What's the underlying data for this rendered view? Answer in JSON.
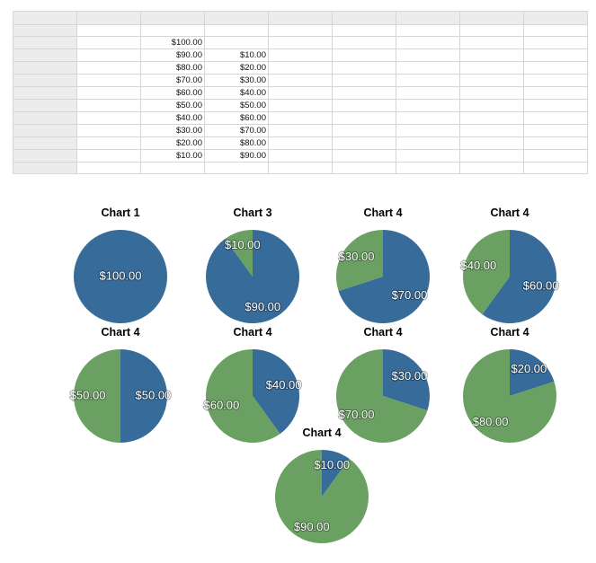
{
  "sheet": {
    "column_count": 9,
    "rows": [
      [
        "",
        "",
        "",
        ""
      ],
      [
        "",
        "",
        "$100.00",
        ""
      ],
      [
        "",
        "",
        "$90.00",
        "$10.00"
      ],
      [
        "",
        "",
        "$80.00",
        "$20.00"
      ],
      [
        "",
        "",
        "$70.00",
        "$30.00"
      ],
      [
        "",
        "",
        "$60.00",
        "$40.00"
      ],
      [
        "",
        "",
        "$50.00",
        "$50.00"
      ],
      [
        "",
        "",
        "$40.00",
        "$60.00"
      ],
      [
        "",
        "",
        "$30.00",
        "$70.00"
      ],
      [
        "",
        "",
        "$20.00",
        "$80.00"
      ],
      [
        "",
        "",
        "$10.00",
        "$90.00"
      ],
      [
        "",
        "",
        "",
        ""
      ]
    ]
  },
  "colors": {
    "series1": "#366b9a",
    "series2": "#6aa062"
  },
  "chart_data": [
    {
      "type": "pie",
      "title": "Chart 1",
      "values": [
        100
      ],
      "labels": [
        "$100.00"
      ]
    },
    {
      "type": "pie",
      "title": "Chart 3",
      "values": [
        90,
        10
      ],
      "labels": [
        "$90.00",
        "$10.00"
      ]
    },
    {
      "type": "pie",
      "title": "Chart 4",
      "values": [
        70,
        30
      ],
      "labels": [
        "$70.00",
        "$30.00"
      ]
    },
    {
      "type": "pie",
      "title": "Chart 4",
      "values": [
        60,
        40
      ],
      "labels": [
        "$60.00",
        "$40.00"
      ]
    },
    {
      "type": "pie",
      "title": "Chart 4",
      "values": [
        50,
        50
      ],
      "labels": [
        "$50.00",
        "$50.00"
      ]
    },
    {
      "type": "pie",
      "title": "Chart 4",
      "values": [
        40,
        60
      ],
      "labels": [
        "$40.00",
        "$60.00"
      ]
    },
    {
      "type": "pie",
      "title": "Chart 4",
      "values": [
        30,
        70
      ],
      "labels": [
        "$30.00",
        "$70.00"
      ]
    },
    {
      "type": "pie",
      "title": "Chart 4",
      "values": [
        20,
        80
      ],
      "labels": [
        "$20.00",
        "$80.00"
      ]
    },
    {
      "type": "pie",
      "title": "Chart 4",
      "values": [
        10,
        90
      ],
      "labels": [
        "$10.00",
        "$90.00"
      ]
    }
  ]
}
